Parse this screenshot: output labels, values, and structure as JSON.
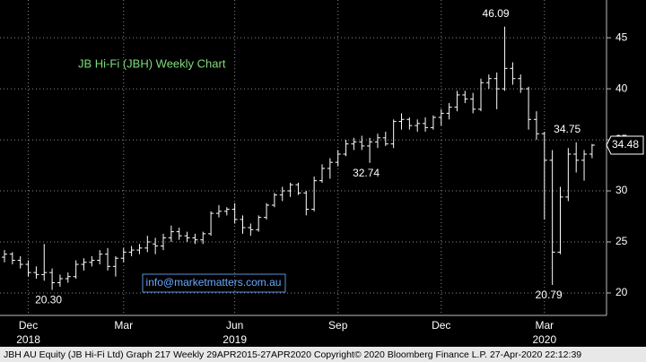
{
  "chart_data": {
    "type": "ohlc",
    "title": "JB Hi-Fi (JBH) Weekly Chart",
    "watermark": "info@marketmatters.com.au",
    "footer": "JBH AU Equity (JB Hi-Fi Ltd) Graph 217  Weekly 29APR2015-27APR2020  Copyright© 2020 Bloomberg Finance L.P.   27-Apr-2020 22:12:39",
    "color": "#ffffff",
    "title_color": "#7ddc7d",
    "grid": true,
    "ylim": [
      17.8,
      48.7
    ],
    "yticks": [
      20,
      25,
      30,
      35,
      40,
      45
    ],
    "categories": [
      null,
      null,
      null,
      "Dec",
      null,
      null,
      null,
      null,
      null,
      null,
      null,
      null,
      null,
      null,
      null,
      "Mar",
      null,
      null,
      null,
      null,
      null,
      null,
      null,
      null,
      null,
      null,
      null,
      null,
      null,
      "Jun",
      null,
      null,
      null,
      null,
      null,
      null,
      null,
      null,
      null,
      null,
      null,
      null,
      "Sep",
      null,
      null,
      null,
      null,
      null,
      null,
      null,
      null,
      null,
      null,
      null,
      null,
      "Dec",
      null,
      null,
      null,
      null,
      null,
      null,
      null,
      null,
      null,
      null,
      null,
      null,
      "Mar",
      null,
      null,
      null,
      null,
      null,
      null
    ],
    "category_years": [
      null,
      null,
      null,
      "2018",
      null,
      null,
      null,
      null,
      null,
      null,
      null,
      null,
      null,
      null,
      null,
      null,
      null,
      null,
      null,
      null,
      null,
      null,
      null,
      null,
      null,
      null,
      null,
      null,
      null,
      "2019",
      null,
      null,
      null,
      null,
      null,
      null,
      null,
      null,
      null,
      null,
      null,
      null,
      null,
      null,
      null,
      null,
      null,
      null,
      null,
      null,
      null,
      null,
      null,
      null,
      null,
      null,
      null,
      null,
      null,
      null,
      null,
      null,
      null,
      null,
      null,
      null,
      null,
      null,
      "2020",
      null,
      null,
      null,
      null,
      null,
      null
    ],
    "open": [
      23.5,
      23.8,
      23.2,
      22.8,
      22.0,
      21.8,
      22.0,
      21.0,
      21.4,
      21.6,
      22.8,
      23.0,
      23.2,
      23.8,
      22.6,
      23.4,
      24.0,
      24.2,
      24.4,
      24.8,
      24.6,
      25.4,
      26.0,
      25.6,
      25.4,
      25.2,
      25.8,
      27.8,
      28.0,
      28.2,
      27.2,
      26.4,
      26.2,
      27.4,
      28.6,
      29.6,
      30.0,
      30.6,
      29.8,
      28.2,
      31.0,
      32.2,
      32.8,
      33.6,
      34.6,
      34.8,
      34.4,
      34.8,
      35.2,
      34.6,
      36.8,
      37.0,
      36.4,
      36.6,
      36.2,
      37.2,
      37.6,
      38.2,
      39.4,
      39.0,
      38.0,
      40.6,
      41.0,
      40.0,
      42.0,
      41.0,
      40.0,
      37.0,
      35.6,
      33.0,
      24.0,
      29.4,
      33.6,
      33.0,
      33.6
    ],
    "high": [
      24.2,
      24.0,
      23.6,
      23.2,
      22.6,
      24.8,
      22.4,
      21.8,
      22.0,
      23.2,
      23.4,
      23.6,
      24.2,
      24.4,
      23.6,
      24.4,
      24.6,
      24.8,
      25.6,
      25.4,
      25.8,
      26.6,
      26.4,
      26.0,
      25.8,
      26.0,
      28.0,
      28.6,
      28.4,
      28.8,
      27.6,
      26.8,
      27.6,
      28.8,
      29.8,
      30.4,
      30.8,
      30.8,
      30.0,
      31.4,
      32.6,
      33.2,
      34.0,
      35.0,
      35.2,
      35.4,
      35.2,
      35.6,
      35.8,
      37.0,
      37.6,
      37.2,
      37.0,
      37.2,
      37.4,
      38.0,
      38.6,
      39.8,
      39.8,
      39.6,
      41.0,
      41.4,
      41.6,
      46.09,
      42.6,
      41.4,
      40.2,
      37.8,
      35.8,
      34.0,
      30.4,
      34.2,
      34.75,
      34.0,
      34.6
    ],
    "low": [
      23.0,
      22.8,
      22.4,
      21.6,
      21.4,
      21.2,
      20.3,
      20.6,
      21.0,
      21.4,
      22.2,
      22.6,
      22.8,
      22.2,
      21.6,
      23.0,
      23.6,
      23.8,
      24.0,
      23.8,
      24.2,
      25.0,
      25.2,
      25.0,
      24.8,
      24.8,
      25.6,
      27.4,
      27.6,
      26.8,
      25.8,
      25.6,
      26.0,
      27.2,
      28.4,
      29.0,
      29.4,
      29.6,
      27.6,
      28.0,
      30.8,
      31.2,
      32.4,
      33.4,
      34.0,
      34.0,
      32.74,
      34.2,
      34.4,
      34.2,
      36.0,
      36.0,
      35.8,
      35.8,
      36.0,
      36.4,
      37.0,
      37.8,
      38.6,
      37.6,
      37.8,
      40.0,
      38.0,
      39.8,
      40.4,
      39.6,
      36.0,
      35.0,
      27.2,
      20.79,
      23.8,
      29.0,
      31.8,
      31.0,
      33.2
    ],
    "close": [
      23.8,
      23.2,
      22.8,
      22.0,
      21.8,
      22.0,
      21.0,
      21.4,
      21.6,
      22.8,
      23.0,
      23.2,
      23.8,
      22.6,
      23.4,
      24.0,
      24.2,
      24.4,
      25.0,
      24.6,
      25.4,
      26.0,
      25.6,
      25.4,
      25.2,
      25.8,
      27.8,
      28.0,
      28.2,
      27.2,
      26.4,
      26.2,
      27.4,
      28.6,
      29.6,
      30.0,
      30.6,
      29.8,
      28.2,
      31.0,
      32.2,
      32.8,
      33.6,
      34.6,
      34.8,
      34.4,
      34.8,
      35.2,
      34.6,
      36.8,
      37.0,
      36.4,
      36.6,
      36.2,
      37.2,
      37.6,
      38.2,
      39.4,
      39.0,
      38.0,
      40.6,
      41.0,
      40.0,
      42.0,
      41.0,
      40.0,
      37.0,
      35.6,
      33.0,
      24.0,
      29.4,
      33.6,
      33.0,
      33.6,
      34.48
    ],
    "high_labels": [
      null,
      null,
      null,
      null,
      null,
      null,
      null,
      null,
      null,
      null,
      null,
      null,
      null,
      null,
      null,
      null,
      null,
      null,
      null,
      null,
      null,
      null,
      null,
      null,
      null,
      null,
      null,
      null,
      null,
      null,
      null,
      null,
      null,
      null,
      null,
      null,
      null,
      null,
      null,
      null,
      null,
      null,
      null,
      null,
      null,
      null,
      null,
      null,
      null,
      null,
      null,
      null,
      null,
      null,
      null,
      null,
      null,
      null,
      null,
      null,
      null,
      null,
      null,
      "46.09",
      null,
      null,
      null,
      null,
      null,
      null,
      null,
      null,
      "34.75",
      null,
      null
    ],
    "low_labels": [
      null,
      null,
      null,
      null,
      null,
      null,
      "20.30",
      null,
      null,
      null,
      null,
      null,
      null,
      null,
      null,
      null,
      null,
      null,
      null,
      null,
      null,
      null,
      null,
      null,
      null,
      null,
      null,
      null,
      null,
      null,
      null,
      null,
      null,
      null,
      null,
      null,
      null,
      null,
      null,
      null,
      null,
      null,
      null,
      null,
      null,
      null,
      "32.74",
      null,
      null,
      null,
      null,
      null,
      null,
      null,
      null,
      null,
      null,
      null,
      null,
      null,
      null,
      null,
      null,
      null,
      null,
      null,
      null,
      null,
      null,
      "20.79",
      null,
      null,
      null,
      null,
      null
    ]
  }
}
